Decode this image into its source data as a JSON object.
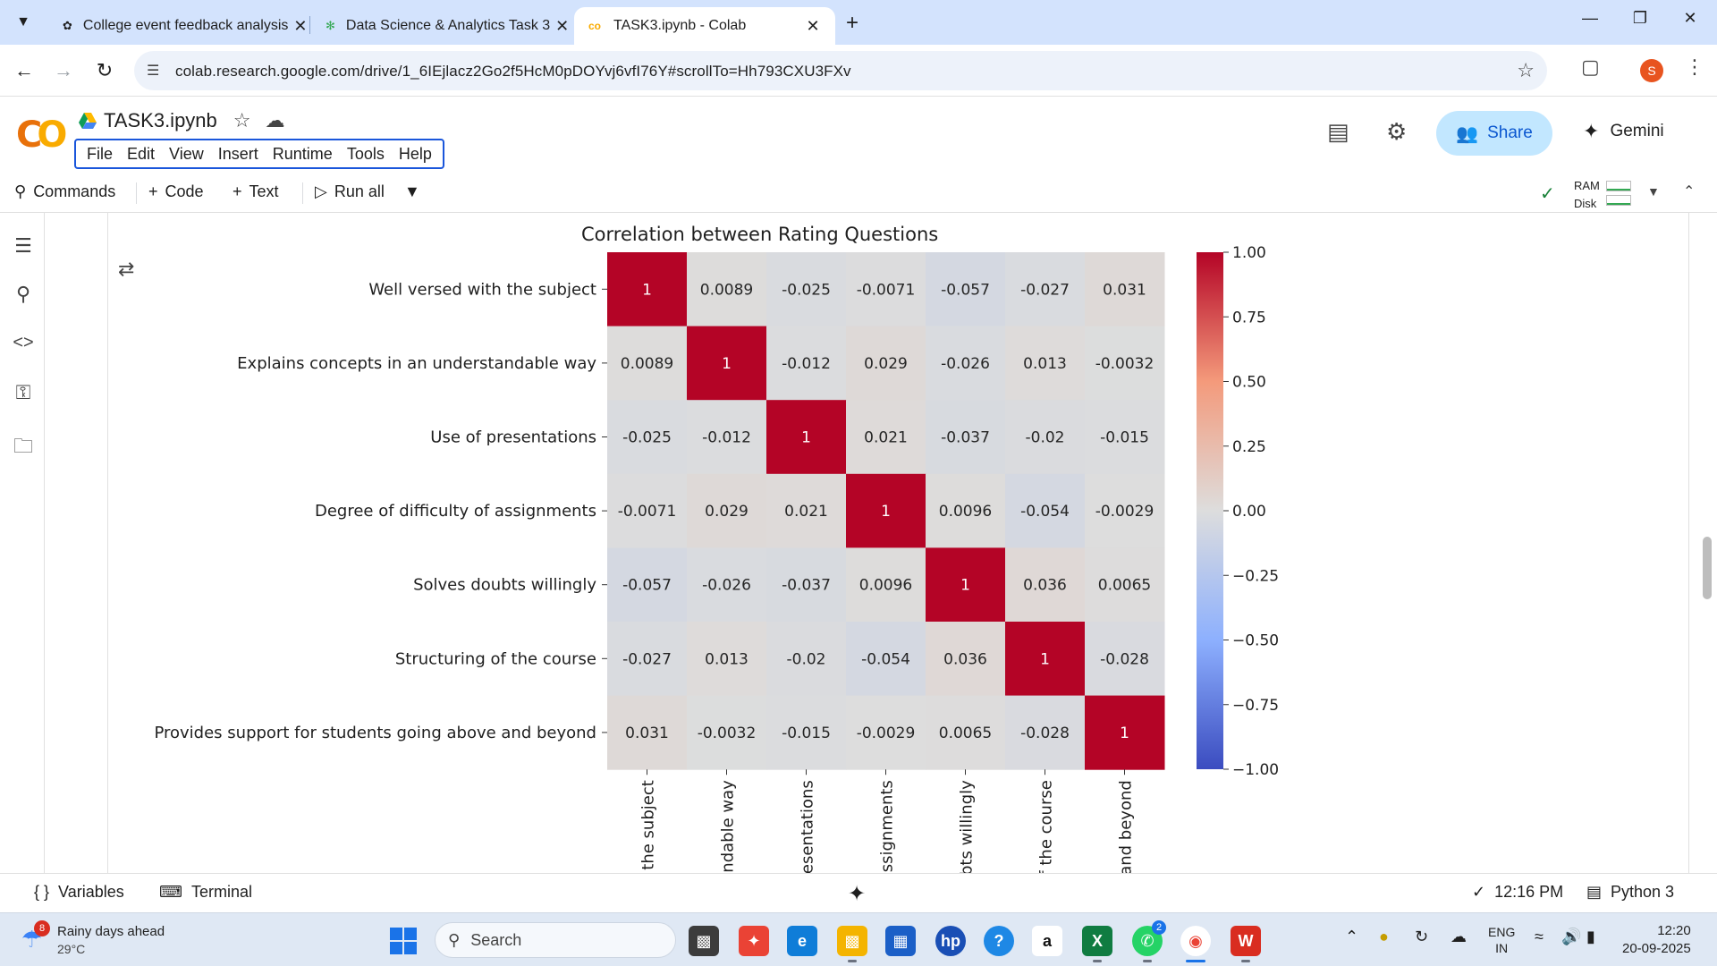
{
  "browser": {
    "tabs": [
      {
        "title": "College event feedback analysis",
        "icon": "openai-icon"
      },
      {
        "title": "Data Science & Analytics Task 3",
        "icon": "leaf-icon"
      },
      {
        "title": "TASK3.ipynb - Colab",
        "icon": "colab-icon",
        "active": true
      }
    ],
    "url": "colab.research.google.com/drive/1_6IEjlacz2Go2f5HcM0pDOYvj6vfI76Y#scrollTo=Hh793CXU3FXv",
    "profile_initial": "S",
    "new_tab": "+"
  },
  "colab": {
    "logo": "CO",
    "notebook_title": "TASK3.ipynb",
    "menu": [
      "File",
      "Edit",
      "View",
      "Insert",
      "Runtime",
      "Tools",
      "Help"
    ],
    "share_label": "Share",
    "gemini_label": "Gemini",
    "toolbar": {
      "commands": "Commands",
      "code": "Code",
      "text": "Text",
      "run_all": "Run all",
      "ram": "RAM",
      "disk": "Disk"
    },
    "statusbar": {
      "variables": "Variables",
      "terminal": "Terminal",
      "time": "12:16 PM",
      "kernel": "Python 3"
    }
  },
  "chart_data": {
    "type": "heatmap",
    "title": "Correlation between Rating Questions",
    "row_labels": [
      "Well versed with the subject",
      "Explains concepts in an understandable way",
      "Use of presentations",
      "Degree of difficulty of assignments",
      "Solves doubts willingly",
      "Structuring of the course",
      "Provides support for students going above and beyond"
    ],
    "col_labels_visible": [
      "the subject",
      "ndable way",
      "esentations",
      "ssignments",
      "bts willingly",
      "f the course",
      "and beyond"
    ],
    "values": [
      [
        1,
        0.0089,
        -0.025,
        -0.0071,
        -0.057,
        -0.027,
        0.031
      ],
      [
        0.0089,
        1,
        -0.012,
        0.029,
        -0.026,
        0.013,
        -0.0032
      ],
      [
        -0.025,
        -0.012,
        1,
        0.021,
        -0.037,
        -0.02,
        -0.015
      ],
      [
        -0.0071,
        0.029,
        0.021,
        1,
        0.0096,
        -0.054,
        -0.0029
      ],
      [
        -0.057,
        -0.026,
        -0.037,
        0.0096,
        1,
        0.036,
        0.0065
      ],
      [
        -0.027,
        0.013,
        -0.02,
        -0.054,
        0.036,
        1,
        -0.028
      ],
      [
        0.031,
        -0.0032,
        -0.015,
        -0.0029,
        0.0065,
        -0.028,
        1
      ]
    ],
    "value_labels": [
      [
        "1",
        "0.0089",
        "-0.025",
        "-0.0071",
        "-0.057",
        "-0.027",
        "0.031"
      ],
      [
        "0.0089",
        "1",
        "-0.012",
        "0.029",
        "-0.026",
        "0.013",
        "-0.0032"
      ],
      [
        "-0.025",
        "-0.012",
        "1",
        "0.021",
        "-0.037",
        "-0.02",
        "-0.015"
      ],
      [
        "-0.0071",
        "0.029",
        "0.021",
        "1",
        "0.0096",
        "-0.054",
        "-0.0029"
      ],
      [
        "-0.057",
        "-0.026",
        "-0.037",
        "0.0096",
        "1",
        "0.036",
        "0.0065"
      ],
      [
        "-0.027",
        "0.013",
        "-0.02",
        "-0.054",
        "0.036",
        "1",
        "-0.028"
      ],
      [
        "0.031",
        "-0.0032",
        "-0.015",
        "-0.0029",
        "0.0065",
        "-0.028",
        "1"
      ]
    ],
    "colormap": "coolwarm",
    "vmin": -1,
    "vmax": 1,
    "colorbar_ticks": [
      "1.00",
      "0.75",
      "0.50",
      "0.25",
      "0.00",
      "−0.25",
      "−0.50",
      "−0.75",
      "−1.00"
    ]
  },
  "taskbar": {
    "weather_title": "Rainy days ahead",
    "weather_temp": "29°C",
    "weather_badge": "8",
    "search_placeholder": "Search",
    "whatsapp_badge": "2",
    "lang_line1": "ENG",
    "lang_line2": "IN",
    "clock_time": "12:20",
    "clock_date": "20-09-2025"
  }
}
